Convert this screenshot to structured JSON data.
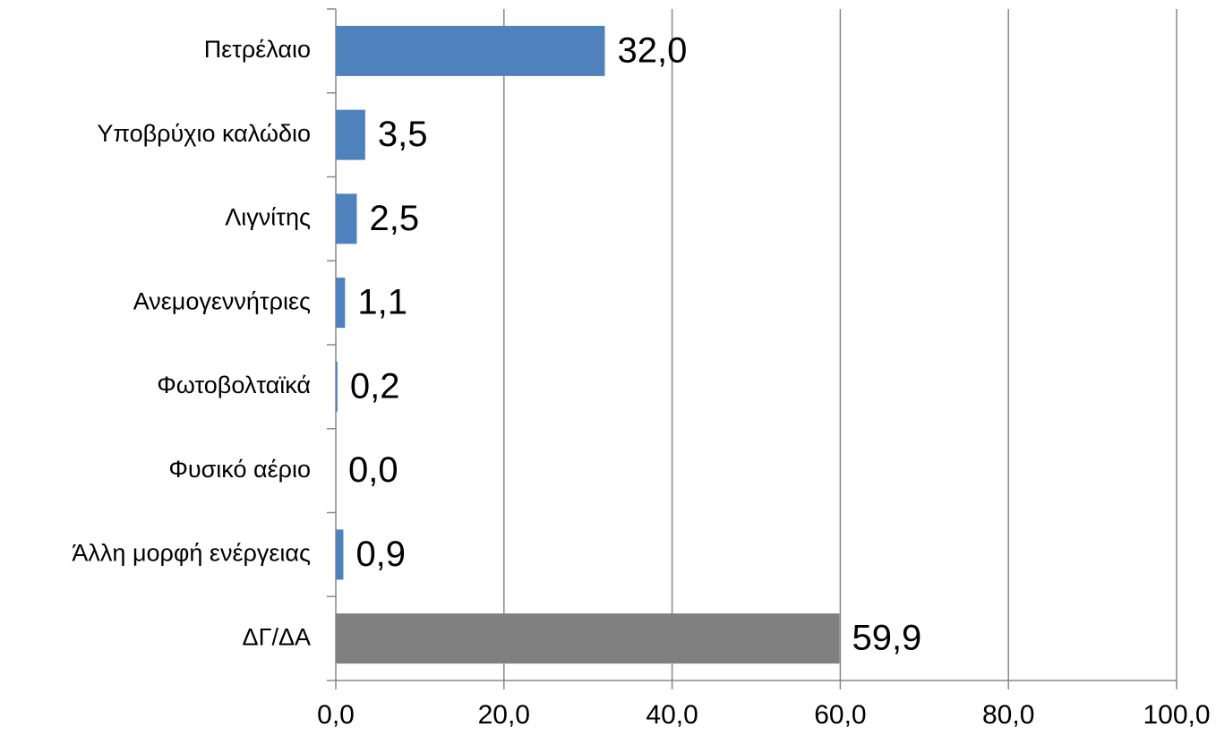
{
  "chart_data": {
    "type": "hbar",
    "categories": [
      "Πετρέλαιο",
      "Υποβρύχιο καλώδιο",
      "Λιγνίτης",
      "Ανεμογεννήτριες",
      "Φωτοβολταϊκά",
      "Φυσικό αέριο",
      "Άλλη μορφή ενέργειας",
      "ΔΓ/ΔΑ"
    ],
    "values": [
      32.0,
      3.5,
      2.5,
      1.1,
      0.2,
      0.0,
      0.9,
      59.9
    ],
    "value_labels": [
      "32,0",
      "3,5",
      "2,5",
      "1,1",
      "0,2",
      "0,0",
      "0,9",
      "59,9"
    ],
    "colors": [
      "#4f81bd",
      "#4f81bd",
      "#4f81bd",
      "#4f81bd",
      "#4f81bd",
      "#4f81bd",
      "#4f81bd",
      "#808080"
    ],
    "xlim": [
      0,
      100
    ],
    "xticks": [
      {
        "value": 0,
        "label": "0,0"
      },
      {
        "value": 20,
        "label": "20,0"
      },
      {
        "value": 40,
        "label": "40,0"
      },
      {
        "value": 60,
        "label": "60,0"
      },
      {
        "value": 80,
        "label": "80,0"
      },
      {
        "value": 100,
        "label": "100,0"
      }
    ],
    "grid": true
  }
}
